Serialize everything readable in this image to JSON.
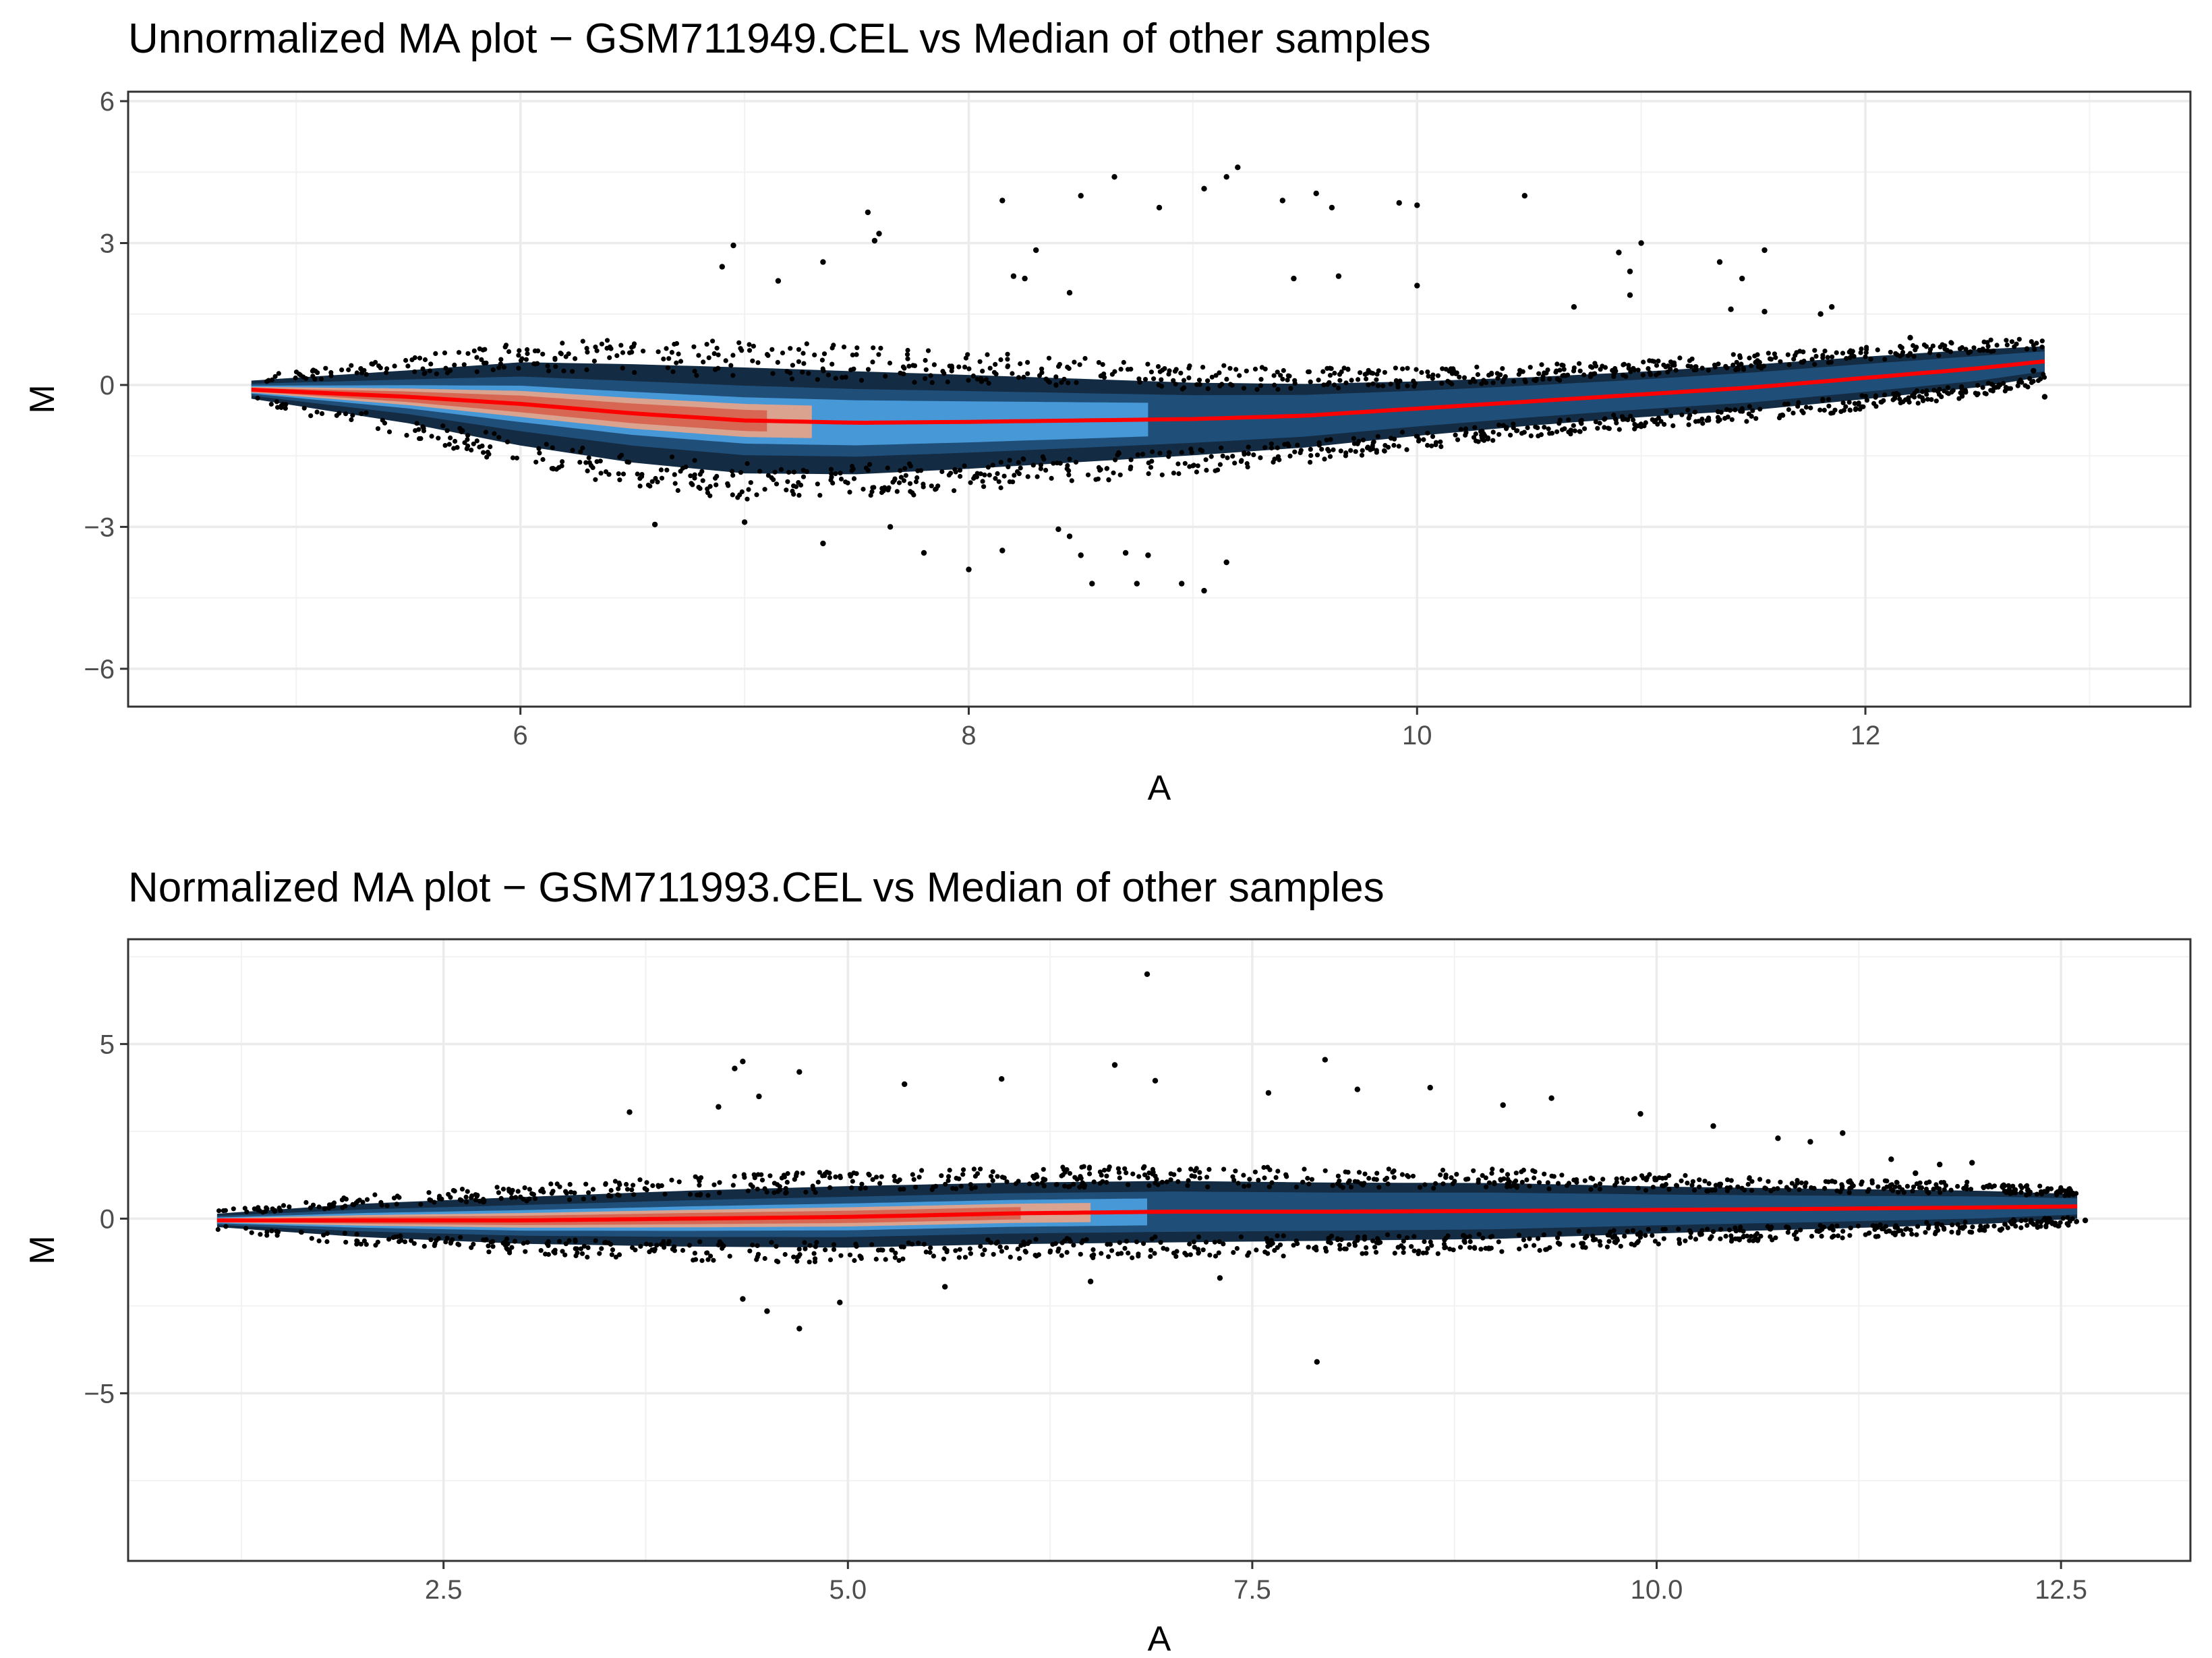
{
  "chart_data": [
    {
      "type": "scatter",
      "subtype": "ma-plot-density",
      "title": "Unnormalized MA plot − GSM711949.CEL vs Median of other samples",
      "xlabel": "A",
      "ylabel": "M",
      "xlim": [
        4.25,
        13.45
      ],
      "ylim": [
        -6.8,
        6.2
      ],
      "x_ticks": [
        6,
        8,
        10,
        12
      ],
      "x_tick_labels": [
        "6",
        "8",
        "10",
        "12"
      ],
      "y_ticks": [
        -6,
        -3,
        0,
        3,
        6
      ],
      "y_tick_labels": [
        "−6",
        "−3",
        "0",
        "3",
        "6"
      ],
      "grid": true,
      "colors": {
        "points": "#000000",
        "density_outer": "#132b43",
        "density_mid": "#56b1f7",
        "density_inner": "#f4a582",
        "density_core": "#d6604d",
        "trend": "#ff0000"
      },
      "density_core_x": [
        4.8,
        7.3
      ],
      "trend_line": {
        "x": [
          4.8,
          5.5,
          6.0,
          6.5,
          7.0,
          7.5,
          8.0,
          8.5,
          9.0,
          9.5,
          10.0,
          10.5,
          11.0,
          11.5,
          12.0,
          12.5,
          12.8
        ],
        "y": [
          -0.1,
          -0.25,
          -0.4,
          -0.6,
          -0.75,
          -0.8,
          -0.78,
          -0.75,
          -0.72,
          -0.65,
          -0.5,
          -0.35,
          -0.2,
          -0.05,
          0.15,
          0.35,
          0.5
        ]
      },
      "spread": {
        "x": [
          4.8,
          5.5,
          6.0,
          6.5,
          7.0,
          7.5,
          8.0,
          8.5,
          9.0,
          9.5,
          10.0,
          10.5,
          11.0,
          11.5,
          12.0,
          12.5,
          12.8
        ],
        "sd": [
          0.12,
          0.35,
          0.55,
          0.65,
          0.7,
          0.68,
          0.62,
          0.55,
          0.48,
          0.42,
          0.36,
          0.32,
          0.3,
          0.3,
          0.28,
          0.25,
          0.2
        ]
      },
      "outliers": [
        {
          "x": 9.2,
          "y": 4.6
        },
        {
          "x": 9.15,
          "y": 4.4
        },
        {
          "x": 9.05,
          "y": 4.15
        },
        {
          "x": 8.65,
          "y": 4.4
        },
        {
          "x": 8.5,
          "y": 4.0
        },
        {
          "x": 8.15,
          "y": 3.9
        },
        {
          "x": 8.85,
          "y": 3.75
        },
        {
          "x": 9.4,
          "y": 3.9
        },
        {
          "x": 9.55,
          "y": 4.05
        },
        {
          "x": 9.62,
          "y": 3.75
        },
        {
          "x": 9.92,
          "y": 3.85
        },
        {
          "x": 10.0,
          "y": 3.8
        },
        {
          "x": 10.48,
          "y": 4.0
        },
        {
          "x": 7.55,
          "y": 3.65
        },
        {
          "x": 7.6,
          "y": 3.2
        },
        {
          "x": 7.58,
          "y": 3.05
        },
        {
          "x": 6.95,
          "y": 2.95
        },
        {
          "x": 6.9,
          "y": 2.5
        },
        {
          "x": 7.35,
          "y": 2.6
        },
        {
          "x": 8.3,
          "y": 2.85
        },
        {
          "x": 8.2,
          "y": 2.3
        },
        {
          "x": 8.25,
          "y": 2.25
        },
        {
          "x": 11.0,
          "y": 3.0
        },
        {
          "x": 10.9,
          "y": 2.8
        },
        {
          "x": 10.95,
          "y": 2.4
        },
        {
          "x": 11.35,
          "y": 2.6
        },
        {
          "x": 11.55,
          "y": 2.85
        },
        {
          "x": 11.45,
          "y": 2.25
        },
        {
          "x": 11.4,
          "y": 1.6
        },
        {
          "x": 11.55,
          "y": 1.55
        },
        {
          "x": 11.85,
          "y": 1.65
        },
        {
          "x": 11.8,
          "y": 1.5
        },
        {
          "x": 10.7,
          "y": 1.65
        },
        {
          "x": 10.95,
          "y": 1.9
        },
        {
          "x": 9.45,
          "y": 2.25
        },
        {
          "x": 9.65,
          "y": 2.3
        },
        {
          "x": 10.0,
          "y": 2.1
        },
        {
          "x": 8.45,
          "y": 1.95
        },
        {
          "x": 7.15,
          "y": 2.2
        },
        {
          "x": 12.2,
          "y": 1.0
        },
        {
          "x": 12.75,
          "y": 0.3
        },
        {
          "x": 12.8,
          "y": -0.25
        },
        {
          "x": 9.05,
          "y": -4.35
        },
        {
          "x": 8.95,
          "y": -4.2
        },
        {
          "x": 8.75,
          "y": -4.2
        },
        {
          "x": 8.55,
          "y": -4.2
        },
        {
          "x": 8.8,
          "y": -3.6
        },
        {
          "x": 8.7,
          "y": -3.55
        },
        {
          "x": 9.15,
          "y": -3.75
        },
        {
          "x": 8.0,
          "y": -3.9
        },
        {
          "x": 8.4,
          "y": -3.05
        },
        {
          "x": 8.45,
          "y": -3.2
        },
        {
          "x": 7.8,
          "y": -3.55
        },
        {
          "x": 7.35,
          "y": -3.35
        },
        {
          "x": 6.6,
          "y": -2.95
        },
        {
          "x": 8.15,
          "y": -3.5
        },
        {
          "x": 8.5,
          "y": -3.6
        },
        {
          "x": 7.65,
          "y": -3.0
        },
        {
          "x": 7.0,
          "y": -2.9
        }
      ]
    },
    {
      "type": "scatter",
      "subtype": "ma-plot-density",
      "title": "Normalized MA plot − GSM711993.CEL vs Median of other samples",
      "xlabel": "A",
      "ylabel": "M",
      "xlim": [
        0.55,
        13.3
      ],
      "ylim": [
        -9.8,
        8.0
      ],
      "x_ticks": [
        2.5,
        5.0,
        7.5,
        10.0,
        12.5
      ],
      "x_tick_labels": [
        "2.5",
        "5.0",
        "7.5",
        "10.0",
        "12.5"
      ],
      "y_ticks": [
        -5,
        0,
        5
      ],
      "y_tick_labels": [
        "−5",
        "0",
        "5"
      ],
      "grid": true,
      "colors": {
        "points": "#000000",
        "density_outer": "#132b43",
        "density_mid": "#56b1f7",
        "density_inner": "#f4a582",
        "density_core": "#d6604d",
        "trend": "#ff0000"
      },
      "density_core_x": [
        1.1,
        6.5
      ],
      "trend_line": {
        "x": [
          1.1,
          2.0,
          3.0,
          4.0,
          5.0,
          6.0,
          7.0,
          8.0,
          9.0,
          10.0,
          11.0,
          12.0,
          12.6
        ],
        "y": [
          -0.05,
          -0.05,
          -0.05,
          0.0,
          0.05,
          0.15,
          0.2,
          0.2,
          0.22,
          0.25,
          0.28,
          0.32,
          0.35
        ]
      },
      "spread": {
        "x": [
          1.1,
          2.0,
          3.0,
          4.0,
          5.0,
          6.0,
          7.0,
          8.0,
          9.0,
          10.0,
          11.0,
          12.0,
          12.6
        ],
        "sd": [
          0.12,
          0.3,
          0.42,
          0.5,
          0.55,
          0.55,
          0.55,
          0.52,
          0.5,
          0.42,
          0.36,
          0.3,
          0.22
        ]
      },
      "outliers": [
        {
          "x": 6.85,
          "y": 7.0
        },
        {
          "x": 4.35,
          "y": 4.5
        },
        {
          "x": 4.3,
          "y": 4.3
        },
        {
          "x": 4.7,
          "y": 4.2
        },
        {
          "x": 6.65,
          "y": 4.4
        },
        {
          "x": 7.95,
          "y": 4.55
        },
        {
          "x": 5.95,
          "y": 4.0
        },
        {
          "x": 6.9,
          "y": 3.95
        },
        {
          "x": 7.6,
          "y": 3.6
        },
        {
          "x": 8.6,
          "y": 3.75
        },
        {
          "x": 8.15,
          "y": 3.7
        },
        {
          "x": 9.35,
          "y": 3.45
        },
        {
          "x": 9.05,
          "y": 3.25
        },
        {
          "x": 9.9,
          "y": 3.0
        },
        {
          "x": 4.45,
          "y": 3.5
        },
        {
          "x": 5.35,
          "y": 3.85
        },
        {
          "x": 3.65,
          "y": 3.05
        },
        {
          "x": 4.2,
          "y": 3.2
        },
        {
          "x": 10.35,
          "y": 2.65
        },
        {
          "x": 10.75,
          "y": 2.3
        },
        {
          "x": 11.15,
          "y": 2.45
        },
        {
          "x": 10.95,
          "y": 2.2
        },
        {
          "x": 11.45,
          "y": 1.7
        },
        {
          "x": 11.75,
          "y": 1.55
        },
        {
          "x": 11.95,
          "y": 1.6
        },
        {
          "x": 11.6,
          "y": 1.3
        },
        {
          "x": 12.2,
          "y": 0.75
        },
        {
          "x": 12.65,
          "y": -0.05
        },
        {
          "x": 7.9,
          "y": -4.1
        },
        {
          "x": 4.7,
          "y": -3.15
        },
        {
          "x": 4.5,
          "y": -2.65
        },
        {
          "x": 4.35,
          "y": -2.3
        },
        {
          "x": 4.95,
          "y": -2.4
        },
        {
          "x": 7.3,
          "y": -1.7
        },
        {
          "x": 6.5,
          "y": -1.8
        },
        {
          "x": 5.6,
          "y": -1.95
        }
      ]
    }
  ]
}
